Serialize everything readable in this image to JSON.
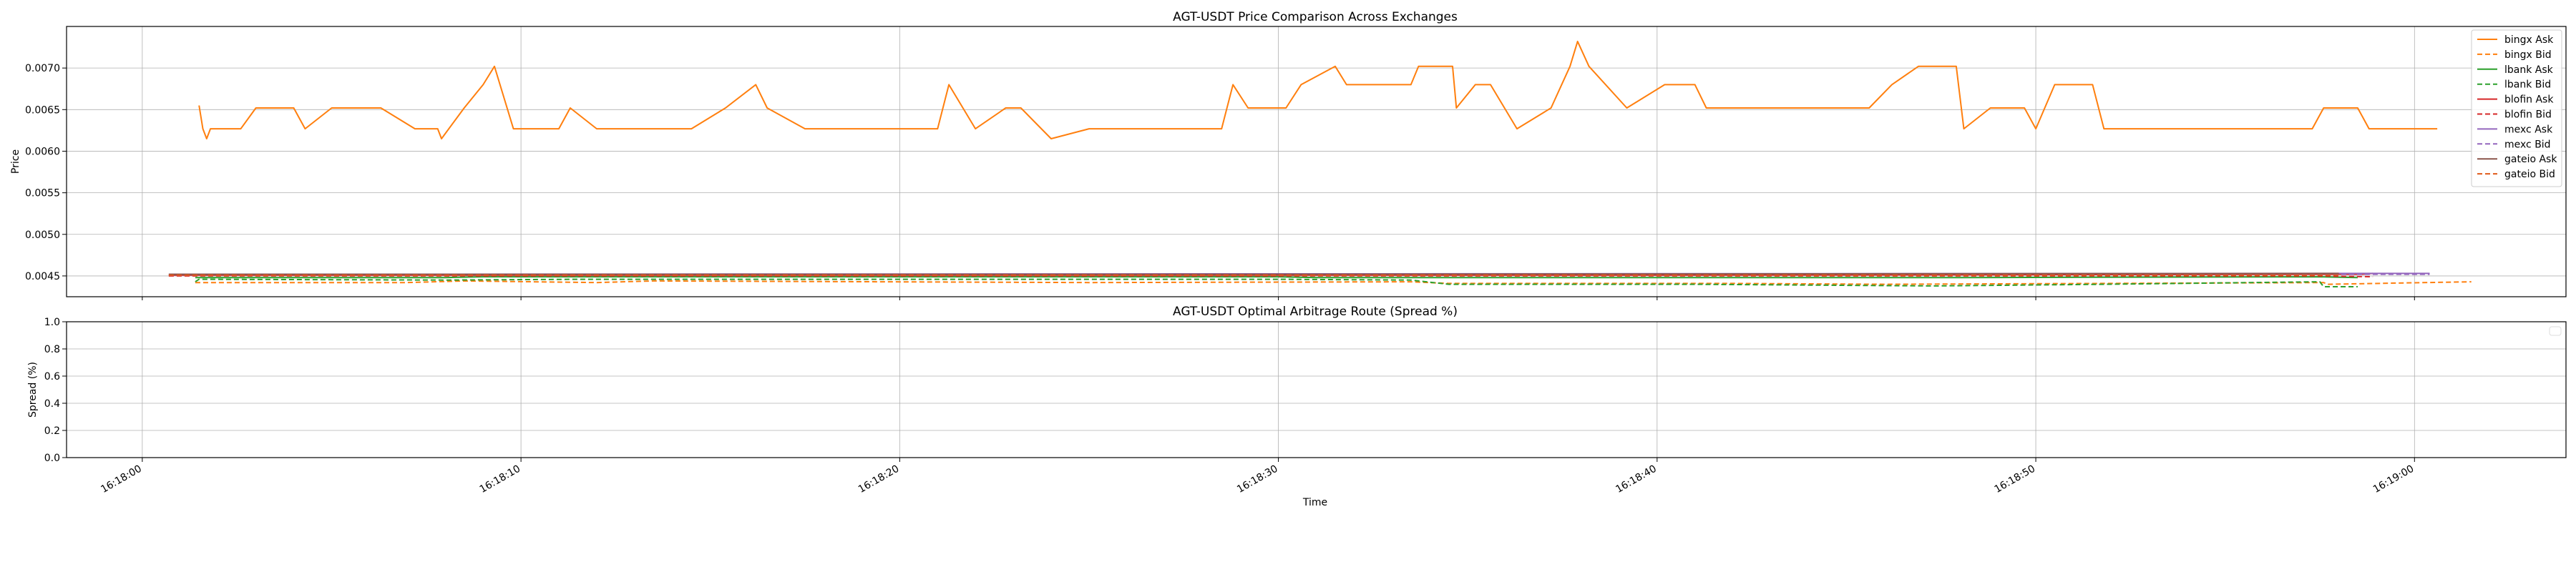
{
  "chart_data": [
    {
      "type": "line",
      "title": "AGT-USDT Price Comparison Across Exchanges",
      "xlabel": "",
      "ylabel": "Price",
      "ylim": [
        0.00425,
        0.0075
      ],
      "yticks": [
        "0.0045",
        "0.0050",
        "0.0055",
        "0.0060",
        "0.0065",
        "0.0070"
      ],
      "xlim": [
        "16:17:58",
        "16:19:04"
      ],
      "grid": true,
      "legend_position": "top-right",
      "series": [
        {
          "name": "bingx Ask",
          "color": "#ff7f0e",
          "style": "solid",
          "points": [
            [
              "16:18:01.5",
              "0.00655"
            ],
            [
              "16:18:01.6",
              "0.00627"
            ],
            [
              "16:18:01.7",
              "0.00615"
            ],
            [
              "16:18:01.8",
              "0.00627"
            ],
            [
              "16:18:02.6",
              "0.00627"
            ],
            [
              "16:18:03.0",
              "0.00652"
            ],
            [
              "16:18:03.5",
              "0.00652"
            ],
            [
              "16:18:04.0",
              "0.00652"
            ],
            [
              "16:18:04.3",
              "0.00627"
            ],
            [
              "16:18:05.0",
              "0.00652"
            ],
            [
              "16:18:06.3",
              "0.00652"
            ],
            [
              "16:18:07.2",
              "0.00627"
            ],
            [
              "16:18:07.8",
              "0.00627"
            ],
            [
              "16:18:07.9",
              "0.00615"
            ],
            [
              "16:18:08.5",
              "0.00652"
            ],
            [
              "16:18:09.0",
              "0.00680"
            ],
            [
              "16:18:09.3",
              "0.00702"
            ],
            [
              "16:18:09.8",
              "0.00627"
            ],
            [
              "16:18:11.0",
              "0.00627"
            ],
            [
              "16:18:11.3",
              "0.00652"
            ],
            [
              "16:18:12.0",
              "0.00627"
            ],
            [
              "16:18:14.5",
              "0.00627"
            ],
            [
              "16:18:15.4",
              "0.00652"
            ],
            [
              "16:18:16.2",
              "0.00680"
            ],
            [
              "16:18:16.5",
              "0.00652"
            ],
            [
              "16:18:17.5",
              "0.00627"
            ],
            [
              "16:18:21.0",
              "0.00627"
            ],
            [
              "16:18:21.3",
              "0.00680"
            ],
            [
              "16:18:22.0",
              "0.00627"
            ],
            [
              "16:18:22.8",
              "0.00652"
            ],
            [
              "16:18:23.2",
              "0.00652"
            ],
            [
              "16:18:24.0",
              "0.00615"
            ],
            [
              "16:18:25.0",
              "0.00627"
            ],
            [
              "16:18:28.5",
              "0.00627"
            ],
            [
              "16:18:28.8",
              "0.00680"
            ],
            [
              "16:18:29.2",
              "0.00652"
            ],
            [
              "16:18:30.2",
              "0.00652"
            ],
            [
              "16:18:30.6",
              "0.00680"
            ],
            [
              "16:18:31.5",
              "0.00702"
            ],
            [
              "16:18:31.8",
              "0.00680"
            ],
            [
              "16:18:33.5",
              "0.00680"
            ],
            [
              "16:18:33.7",
              "0.00702"
            ],
            [
              "16:18:34.6",
              "0.00702"
            ],
            [
              "16:18:34.7",
              "0.00652"
            ],
            [
              "16:18:35.2",
              "0.00680"
            ],
            [
              "16:18:35.6",
              "0.00680"
            ],
            [
              "16:18:36.3",
              "0.00627"
            ],
            [
              "16:18:37.2",
              "0.00652"
            ],
            [
              "16:18:37.7",
              "0.00702"
            ],
            [
              "16:18:37.9",
              "0.00732"
            ],
            [
              "16:18:38.2",
              "0.00702"
            ],
            [
              "16:18:39.2",
              "0.00652"
            ],
            [
              "16:18:40.2",
              "0.00680"
            ],
            [
              "16:18:41.0",
              "0.00680"
            ],
            [
              "16:18:41.3",
              "0.00652"
            ],
            [
              "16:18:45.6",
              "0.00652"
            ],
            [
              "16:18:46.2",
              "0.00680"
            ],
            [
              "16:18:46.9",
              "0.00702"
            ],
            [
              "16:18:47.9",
              "0.00702"
            ],
            [
              "16:18:48.1",
              "0.00627"
            ],
            [
              "16:18:48.8",
              "0.00652"
            ],
            [
              "16:18:49.7",
              "0.00652"
            ],
            [
              "16:18:50.0",
              "0.00627"
            ],
            [
              "16:18:50.5",
              "0.00680"
            ],
            [
              "16:18:51.5",
              "0.00680"
            ],
            [
              "16:18:51.8",
              "0.00627"
            ],
            [
              "16:18:57.3",
              "0.00627"
            ],
            [
              "16:18:57.6",
              "0.00652"
            ],
            [
              "16:18:58.5",
              "0.00652"
            ],
            [
              "16:18:58.8",
              "0.00627"
            ],
            [
              "16:19:00.6",
              "0.00627"
            ]
          ]
        },
        {
          "name": "bingx Bid",
          "color": "#ff7f0e",
          "style": "dashed",
          "points": [
            [
              "16:18:01.4",
              "0.00442"
            ],
            [
              "16:18:07.0",
              "0.00442"
            ],
            [
              "16:18:08.5",
              "0.00444"
            ],
            [
              "16:18:12.0",
              "0.00442"
            ],
            [
              "16:18:13.5",
              "0.00444"
            ],
            [
              "16:18:25.0",
              "0.00442"
            ],
            [
              "16:18:33.5",
              "0.00443"
            ],
            [
              "16:18:34.5",
              "0.00441"
            ],
            [
              "16:18:42.0",
              "0.00441"
            ],
            [
              "16:18:46.0",
              "0.00440"
            ],
            [
              "16:18:57.6",
              "0.00442"
            ],
            [
              "16:18:57.7",
              "0.00440"
            ],
            [
              "16:19:01.5",
              "0.00443"
            ]
          ]
        },
        {
          "name": "lbank Ask",
          "color": "#2ca02c",
          "style": "solid",
          "points": [
            [
              "16:18:01.4",
              "0.00448"
            ],
            [
              "16:18:08.0",
              "0.00448"
            ],
            [
              "16:18:09.0",
              "0.00449"
            ],
            [
              "16:18:30.0",
              "0.00449"
            ],
            [
              "16:18:31.0",
              "0.00448"
            ],
            [
              "16:18:48.0",
              "0.00448"
            ],
            [
              "16:18:57.5",
              "0.00449"
            ],
            [
              "16:18:58.5",
              "0.00448"
            ]
          ]
        },
        {
          "name": "lbank Bid",
          "color": "#2ca02c",
          "style": "dashed",
          "points": [
            [
              "16:18:01.4",
              "0.00443"
            ],
            [
              "16:18:01.5",
              "0.00446"
            ],
            [
              "16:18:08.0",
              "0.00445"
            ],
            [
              "16:18:11.5",
              "0.00446"
            ],
            [
              "16:18:25.0",
              "0.00446"
            ],
            [
              "16:18:30.0",
              "0.00446"
            ],
            [
              "16:18:33.5",
              "0.00445"
            ],
            [
              "16:18:34.5",
              "0.00440"
            ],
            [
              "16:18:41.0",
              "0.00440"
            ],
            [
              "16:18:47.3",
              "0.00438"
            ],
            [
              "16:18:51.8",
              "0.00440"
            ],
            [
              "16:18:57.5",
              "0.00443"
            ],
            [
              "16:18:57.6",
              "0.00437"
            ],
            [
              "16:18:58.5",
              "0.00437"
            ]
          ]
        },
        {
          "name": "blofin Ask",
          "color": "#d62728",
          "style": "solid",
          "points": [
            [
              "16:18:00.7",
              "0.00451"
            ],
            [
              "16:18:40.0",
              "0.00451"
            ],
            [
              "16:18:58.6",
              "0.00452"
            ],
            [
              "16:18:58.9",
              "0.00453"
            ]
          ]
        },
        {
          "name": "blofin Bid",
          "color": "#d62728",
          "style": "dashed",
          "points": [
            [
              "16:18:00.7",
              "0.00450"
            ],
            [
              "16:18:40.0",
              "0.00450"
            ],
            [
              "16:18:57.5",
              "0.00450"
            ],
            [
              "16:18:58.9",
              "0.00449"
            ]
          ]
        },
        {
          "name": "mexc Ask",
          "color": "#9467bd",
          "style": "solid",
          "points": [
            [
              "16:18:00.7",
              "0.00452"
            ],
            [
              "16:18:58.0",
              "0.00453"
            ],
            [
              "16:18:59.0",
              "0.00453"
            ],
            [
              "16:19:00.4",
              "0.00453"
            ]
          ]
        },
        {
          "name": "mexc Bid",
          "color": "#9467bd",
          "style": "dashed",
          "points": [
            [
              "16:18:00.7",
              "0.00451"
            ],
            [
              "16:18:40.0",
              "0.00451"
            ],
            [
              "16:18:59.0",
              "0.00452"
            ],
            [
              "16:19:00.4",
              "0.00452"
            ]
          ]
        },
        {
          "name": "gateio Ask",
          "color": "#8c564b",
          "style": "solid",
          "points": [
            [
              "16:18:00.7",
              "0.00452"
            ],
            [
              "16:18:30.0",
              "0.00452"
            ],
            [
              "16:18:58.0",
              "0.00453"
            ]
          ]
        },
        {
          "name": "gateio Bid",
          "color": "#e05a1a",
          "style": "dashed",
          "points": [
            [
              "16:18:00.7",
              "0.00451"
            ],
            [
              "16:18:30.0",
              "0.00451"
            ],
            [
              "16:18:58.0",
              "0.00451"
            ]
          ]
        }
      ]
    },
    {
      "type": "line",
      "title": "AGT-USDT Optimal Arbitrage Route (Spread %)",
      "xlabel": "Time",
      "ylabel": "Spread (%)",
      "ylim": [
        0.0,
        1.0
      ],
      "yticks": [
        "0.0",
        "0.2",
        "0.4",
        "0.6",
        "0.8",
        "1.0"
      ],
      "xlim": [
        "16:17:58",
        "16:19:04"
      ],
      "xticks": [
        "16:18:00",
        "16:18:10",
        "16:18:20",
        "16:18:30",
        "16:18:40",
        "16:18:50",
        "16:19:00"
      ],
      "grid": true,
      "legend_position": "top-right",
      "series": []
    }
  ]
}
